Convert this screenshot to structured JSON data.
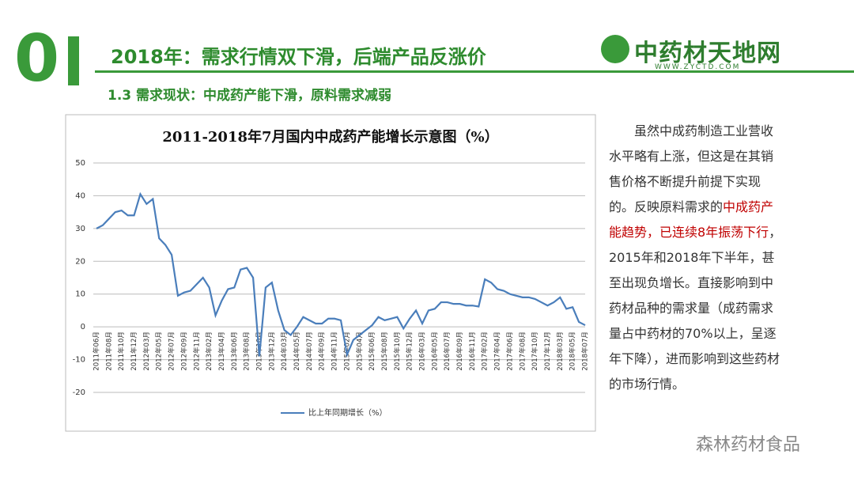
{
  "header": {
    "number": "0",
    "title": "2018年：需求行情双下滑，后端产品反涨价",
    "subtitle": "1.3 需求现状：中成药产能下滑，原料需求减弱",
    "logo": "中药材天地网",
    "logo_url": "WWW.ZYCTD.COM"
  },
  "text": {
    "part1": "虽然中成药制造工业营收水平略有上涨，但这是在其销售价格不断提升前提下实现的。反映原料需求的",
    "highlight": "中成药产能趋势，已连续8年振荡下行",
    "part2": "，2015年和2018年下半年，甚至出现负增长。直接影响到中药材品种的需求量（成药需求量占中药材的70%以上，呈逐年下降），进而影响到这些药材的市场行情。"
  },
  "watermark": "森林药材食品",
  "chart_data": {
    "type": "line",
    "title": "2011-2018年7月国内中成药产能增长示意图（%）",
    "categories": [
      "2011年06月",
      null,
      "2011年08月",
      null,
      "2011年10月",
      null,
      "2011年12月",
      null,
      "2012年03月",
      null,
      "2012年05月",
      null,
      "2012年07月",
      null,
      "2012年09月",
      null,
      "2012年11月",
      null,
      "2013年02月",
      null,
      "2013年04月",
      null,
      "2013年06月",
      null,
      "2013年08月",
      null,
      "2013年10月",
      null,
      "2013年12月",
      null,
      "2014年03月",
      null,
      "2014年05月",
      null,
      "2014年07月",
      null,
      "2014年09月",
      null,
      "2014年11月",
      null,
      "2015年02月",
      null,
      "2015年04月",
      null,
      "2015年06月",
      null,
      "2015年08月",
      null,
      "2015年10月",
      null,
      "2015年12月",
      null,
      "2016年03月",
      null,
      "2016年05月",
      null,
      "2016年07月",
      null,
      "2016年09月",
      null,
      "2016年11月",
      null,
      "2017年02月",
      null,
      "2017年04月",
      null,
      "2017年06月",
      null,
      "2017年08月",
      null,
      "2017年10月",
      null,
      "2017年12月",
      null,
      "2018年03月",
      null,
      "2018年05月",
      null,
      "2018年07月"
    ],
    "series": [
      {
        "name": "比上年同期增长（%）",
        "color": "#4a7ebb",
        "values": [
          30,
          31,
          33,
          35,
          35.5,
          34,
          34,
          40.5,
          37.5,
          39,
          27,
          25,
          22,
          9.5,
          10.5,
          11,
          13,
          15,
          12,
          3.5,
          8,
          11.5,
          12,
          17.5,
          18,
          15,
          -9,
          12,
          13.5,
          5,
          -1,
          -2.5,
          0,
          3,
          2,
          1,
          1,
          2.5,
          2.5,
          2,
          -8.5,
          -4,
          -2.5,
          -1,
          0.5,
          3,
          2,
          2.5,
          3,
          -0.5,
          2.5,
          5,
          1,
          5,
          5.5,
          7.5,
          7.5,
          7,
          7,
          6.5,
          6.5,
          6.2,
          14.5,
          13.5,
          11.5,
          11,
          10,
          9.5,
          9,
          9,
          8.5,
          7.5,
          6.5,
          7.5,
          9,
          5.5,
          6,
          1.5,
          0.5
        ]
      }
    ],
    "ylim": [
      -20,
      50
    ],
    "yticks": [
      50,
      40,
      30,
      20,
      10,
      0,
      -10,
      -20
    ],
    "grid": true
  }
}
